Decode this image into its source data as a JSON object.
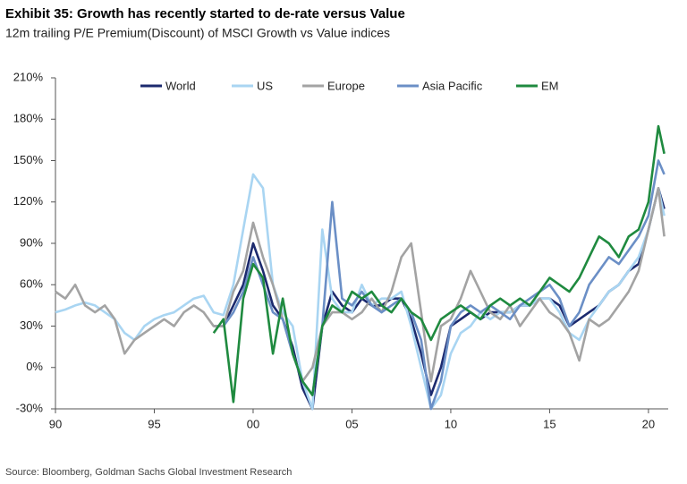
{
  "chart_data": {
    "type": "line",
    "title": "Exhibit 35: Growth has recently started to de-rate versus Value",
    "subtitle": "12m trailing P/E Premium(Discount) of MSCI Growth vs Value indices",
    "source": "Source: Bloomberg, Goldman Sachs Global Investment Research",
    "x": [
      1990,
      1990.5,
      1991,
      1991.5,
      1992,
      1992.5,
      1993,
      1993.5,
      1994,
      1994.5,
      1995,
      1995.5,
      1996,
      1996.5,
      1997,
      1997.5,
      1998,
      1998.5,
      1999,
      1999.5,
      2000,
      2000.5,
      2001,
      2001.5,
      2002,
      2002.5,
      2003,
      2003.5,
      2004,
      2004.5,
      2005,
      2005.5,
      2006,
      2006.5,
      2007,
      2007.5,
      2008,
      2008.5,
      2009,
      2009.5,
      2010,
      2010.5,
      2011,
      2011.5,
      2012,
      2012.5,
      2013,
      2013.5,
      2014,
      2014.5,
      2015,
      2015.5,
      2016,
      2016.5,
      2017,
      2017.5,
      2018,
      2018.5,
      2019,
      2019.5,
      2020,
      2020.5,
      2020.8
    ],
    "series": [
      {
        "name": "World",
        "color": "#1c2a6e",
        "values": [
          null,
          null,
          null,
          null,
          null,
          null,
          null,
          null,
          null,
          null,
          null,
          null,
          null,
          null,
          null,
          null,
          30,
          30,
          45,
          60,
          90,
          70,
          45,
          35,
          15,
          -15,
          -30,
          30,
          55,
          45,
          40,
          50,
          45,
          45,
          50,
          50,
          35,
          10,
          -20,
          0,
          30,
          35,
          40,
          35,
          40,
          40,
          40,
          45,
          45,
          50,
          50,
          45,
          30,
          35,
          40,
          45,
          55,
          60,
          70,
          75,
          100,
          130,
          115
        ]
      },
      {
        "name": "US",
        "color": "#a9d5f2",
        "values": [
          40,
          42,
          45,
          47,
          45,
          40,
          35,
          25,
          20,
          30,
          35,
          38,
          40,
          45,
          50,
          52,
          40,
          38,
          60,
          100,
          140,
          130,
          60,
          40,
          30,
          -10,
          -30,
          100,
          50,
          40,
          40,
          60,
          45,
          50,
          50,
          55,
          30,
          0,
          -30,
          -20,
          10,
          25,
          30,
          40,
          35,
          40,
          40,
          45,
          45,
          50,
          50,
          40,
          25,
          20,
          35,
          45,
          55,
          60,
          70,
          80,
          100,
          130,
          110
        ]
      },
      {
        "name": "Europe",
        "color": "#a3a3a3",
        "values": [
          55,
          50,
          60,
          45,
          40,
          45,
          35,
          10,
          20,
          25,
          30,
          35,
          30,
          40,
          45,
          40,
          30,
          30,
          55,
          70,
          105,
          80,
          60,
          35,
          10,
          -10,
          0,
          30,
          40,
          40,
          35,
          40,
          50,
          40,
          55,
          80,
          90,
          40,
          -10,
          30,
          35,
          50,
          70,
          55,
          40,
          35,
          45,
          30,
          40,
          50,
          40,
          35,
          25,
          5,
          35,
          30,
          35,
          45,
          55,
          70,
          100,
          130,
          95
        ]
      },
      {
        "name": "Asia Pacific",
        "color": "#6b8fc6",
        "values": [
          null,
          null,
          null,
          null,
          null,
          null,
          null,
          null,
          null,
          null,
          null,
          null,
          null,
          null,
          null,
          null,
          null,
          30,
          40,
          55,
          80,
          60,
          40,
          35,
          10,
          -10,
          -20,
          30,
          120,
          50,
          45,
          55,
          45,
          40,
          45,
          50,
          40,
          20,
          -30,
          -10,
          30,
          40,
          45,
          40,
          45,
          40,
          35,
          45,
          50,
          55,
          60,
          50,
          30,
          40,
          60,
          70,
          80,
          75,
          85,
          95,
          110,
          150,
          140
        ]
      },
      {
        "name": "EM",
        "color": "#1f8a3f",
        "values": [
          null,
          null,
          null,
          null,
          null,
          null,
          null,
          null,
          null,
          null,
          null,
          null,
          null,
          null,
          null,
          null,
          25,
          35,
          -25,
          50,
          75,
          65,
          10,
          50,
          10,
          -10,
          -20,
          30,
          45,
          40,
          55,
          50,
          55,
          45,
          40,
          50,
          40,
          35,
          20,
          35,
          40,
          45,
          40,
          35,
          45,
          50,
          45,
          50,
          45,
          55,
          65,
          60,
          55,
          65,
          80,
          95,
          90,
          80,
          95,
          100,
          120,
          175,
          155
        ]
      }
    ],
    "xlim": [
      1990,
      2021
    ],
    "xticks": [
      {
        "value": 1990,
        "label": "90"
      },
      {
        "value": 1995,
        "label": "95"
      },
      {
        "value": 2000,
        "label": "00"
      },
      {
        "value": 2005,
        "label": "05"
      },
      {
        "value": 2010,
        "label": "10"
      },
      {
        "value": 2015,
        "label": "15"
      },
      {
        "value": 2020,
        "label": "20"
      }
    ],
    "ylim": [
      -30,
      210
    ],
    "yticks": [
      {
        "value": -30,
        "label": "-30%"
      },
      {
        "value": 0,
        "label": "0%"
      },
      {
        "value": 30,
        "label": "30%"
      },
      {
        "value": 60,
        "label": "60%"
      },
      {
        "value": 90,
        "label": "90%"
      },
      {
        "value": 120,
        "label": "120%"
      },
      {
        "value": 150,
        "label": "150%"
      },
      {
        "value": 180,
        "label": "180%"
      },
      {
        "value": 210,
        "label": "210%"
      }
    ],
    "grid": false,
    "legend": "top"
  }
}
